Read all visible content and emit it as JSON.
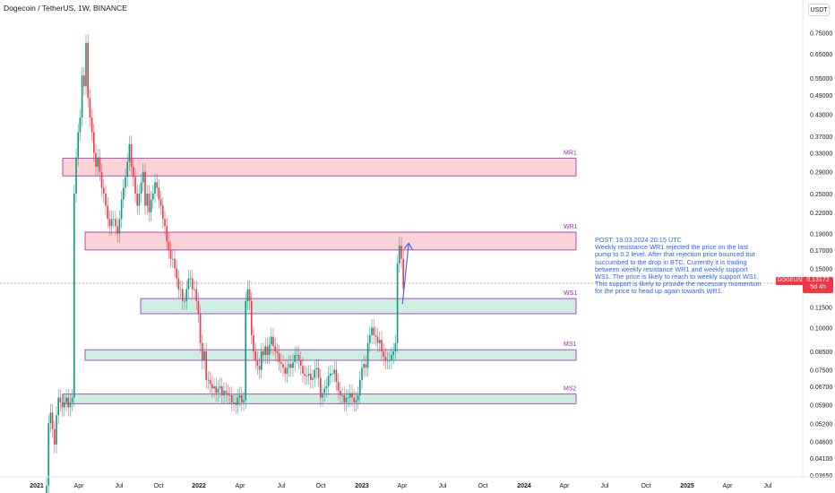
{
  "header": {
    "title": "Dogecoin / TetherUS, 1W, BINANCE",
    "unit_button": "USDT"
  },
  "price_label": {
    "symbol": "DOGEUSDT",
    "price": "0.13172",
    "countdown": "5d 4h"
  },
  "annotation": {
    "lines": [
      "POST: 19.03.2024 20:15 UTC",
      "Weekly resistance WR1 rejected the price on the last pump to  0.2  level. After that rejection price bounced but succumbed to the drop in BTC. Currently it is trading between weekly resistance WR1 and weekly support WS1. The price is likely to reach to weekly support WS1. This support is likely to provide the necessary momentum for the price to head up again towards WR1."
    ]
  },
  "chart_data": {
    "type": "candlestick",
    "title": "Dogecoin / TetherUS, 1W, BINANCE",
    "y_scale": "log",
    "y_ticks": [
      "0.75000",
      "0.65000",
      "0.55000",
      "0.49000",
      "0.43000",
      "0.37000",
      "0.33000",
      "0.29000",
      "0.25000",
      "0.22000",
      "0.19000",
      "0.17000",
      "0.15000",
      "0.13000",
      "0.11500",
      "0.10000",
      "0.08500",
      "0.07500",
      "0.06700",
      "0.05900",
      "0.05200",
      "0.04600",
      "0.04100",
      "0.03650"
    ],
    "x_ticks": [
      "2021",
      "Apr",
      "Jul",
      "Oct",
      "2022",
      "Apr",
      "Jul",
      "Oct",
      "2023",
      "Apr",
      "Jul",
      "Oct",
      "2024",
      "Apr",
      "Jul",
      "Oct",
      "2025",
      "Apr",
      "Jul"
    ],
    "current_price": 0.13172,
    "colors": {
      "up": "#089981",
      "down": "#f23645",
      "resistance_fill": "#fbd3d7",
      "support_fill": "#cdeee3",
      "zone_border": "#9c27b0",
      "annotation": "#2962ff"
    },
    "zones": [
      {
        "label": "MR1",
        "kind": "resistance",
        "low": 0.282,
        "high": 0.318,
        "start": "2021-01",
        "end": "2024-05"
      },
      {
        "label": "WR1",
        "kind": "resistance",
        "low": 0.17,
        "high": 0.192,
        "start": "2021-04",
        "end": "2024-05"
      },
      {
        "label": "WS1",
        "kind": "support",
        "low": 0.11,
        "high": 0.122,
        "start": "2021-10",
        "end": "2024-05"
      },
      {
        "label": "MS1",
        "kind": "support",
        "low": 0.08,
        "high": 0.086,
        "start": "2021-04",
        "end": "2024-05"
      },
      {
        "label": "MS2",
        "kind": "support",
        "low": 0.0595,
        "high": 0.0635,
        "start": "2021-01",
        "end": "2024-05"
      }
    ],
    "projection": {
      "from_price": 0.1175,
      "to_price": 0.178
    },
    "weekly_close": [
      0.034,
      0.052,
      0.056,
      0.05,
      0.045,
      0.055,
      0.062,
      0.06,
      0.058,
      0.06,
      0.062,
      0.058,
      0.06,
      0.062,
      0.25,
      0.32,
      0.38,
      0.42,
      0.56,
      0.52,
      0.7,
      0.48,
      0.42,
      0.38,
      0.33,
      0.3,
      0.32,
      0.29,
      0.26,
      0.25,
      0.23,
      0.21,
      0.2,
      0.21,
      0.21,
      0.2,
      0.19,
      0.21,
      0.24,
      0.26,
      0.28,
      0.31,
      0.35,
      0.3,
      0.28,
      0.25,
      0.23,
      0.25,
      0.27,
      0.29,
      0.23,
      0.25,
      0.22,
      0.24,
      0.25,
      0.27,
      0.26,
      0.24,
      0.23,
      0.21,
      0.2,
      0.18,
      0.17,
      0.16,
      0.16,
      0.15,
      0.14,
      0.13,
      0.13,
      0.12,
      0.12,
      0.13,
      0.14,
      0.14,
      0.13,
      0.13,
      0.12,
      0.11,
      0.09,
      0.08,
      0.085,
      0.07,
      0.07,
      0.068,
      0.066,
      0.067,
      0.064,
      0.066,
      0.067,
      0.063,
      0.065,
      0.064,
      0.063,
      0.063,
      0.06,
      0.06,
      0.059,
      0.062,
      0.063,
      0.06,
      0.061,
      0.12,
      0.13,
      0.12,
      0.095,
      0.085,
      0.08,
      0.077,
      0.075,
      0.085,
      0.083,
      0.088,
      0.083,
      0.089,
      0.094,
      0.088,
      0.085,
      0.084,
      0.079,
      0.078,
      0.076,
      0.073,
      0.076,
      0.078,
      0.076,
      0.079,
      0.083,
      0.083,
      0.08,
      0.077,
      0.073,
      0.072,
      0.072,
      0.073,
      0.07,
      0.071,
      0.075,
      0.076,
      0.071,
      0.062,
      0.064,
      0.066,
      0.067,
      0.072,
      0.073,
      0.073,
      0.075,
      0.069,
      0.065,
      0.063,
      0.063,
      0.06,
      0.062,
      0.062,
      0.064,
      0.062,
      0.06,
      0.061,
      0.063,
      0.07,
      0.076,
      0.078,
      0.076,
      0.09,
      0.095,
      0.1,
      0.095,
      0.094,
      0.09,
      0.092,
      0.085,
      0.082,
      0.08,
      0.08,
      0.08,
      0.083,
      0.085,
      0.09,
      0.155,
      0.175,
      0.16,
      0.131
    ]
  }
}
